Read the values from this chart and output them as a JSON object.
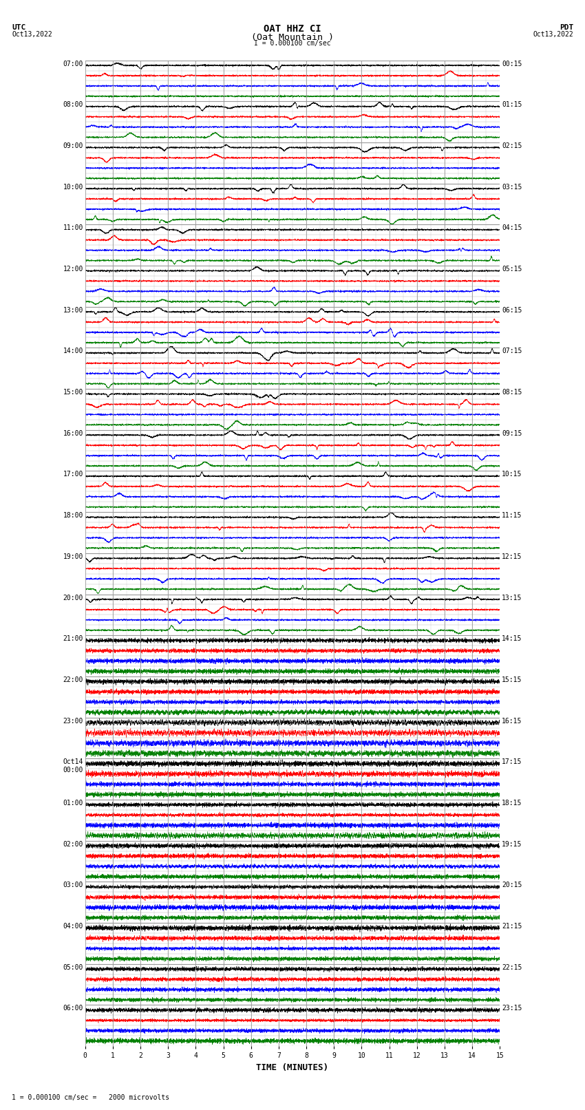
{
  "title_line1": "OAT HHZ CI",
  "title_line2": "(Oat Mountain )",
  "scale_text": "I = 0.000100 cm/sec",
  "footer_text": "1 = 0.000100 cm/sec =   2000 microvolts",
  "utc_label": "UTC",
  "utc_date": "Oct13,2022",
  "pdt_label": "PDT",
  "pdt_date": "Oct13,2022",
  "xlabel": "TIME (MINUTES)",
  "xlim": [
    0,
    15
  ],
  "fig_width": 8.5,
  "fig_height": 16.13,
  "background_color": "#ffffff",
  "grid_color": "#999999",
  "utc_times": [
    "07:00",
    "08:00",
    "09:00",
    "10:00",
    "11:00",
    "12:00",
    "13:00",
    "14:00",
    "15:00",
    "16:00",
    "17:00",
    "18:00",
    "19:00",
    "20:00",
    "21:00",
    "22:00",
    "23:00",
    "Oct14\n00:00",
    "01:00",
    "02:00",
    "03:00",
    "04:00",
    "05:00",
    "06:00"
  ],
  "pdt_times": [
    "00:15",
    "01:15",
    "02:15",
    "03:15",
    "04:15",
    "05:15",
    "06:15",
    "07:15",
    "08:15",
    "09:15",
    "10:15",
    "11:15",
    "12:15",
    "13:15",
    "14:15",
    "15:15",
    "16:15",
    "17:15",
    "18:15",
    "19:15",
    "20:15",
    "21:15",
    "22:15",
    "23:15"
  ],
  "n_hours": 24,
  "n_channels": 4,
  "trace_colors": [
    "black",
    "red",
    "blue",
    "green"
  ],
  "sparse_hours": 14,
  "title_fontsize": 10,
  "label_fontsize": 8,
  "tick_fontsize": 7,
  "mono_font": "monospace"
}
